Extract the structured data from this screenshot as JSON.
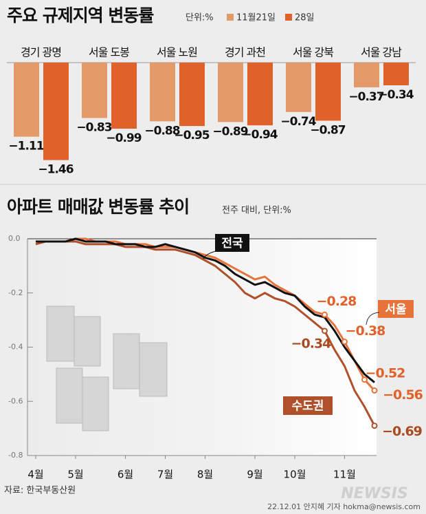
{
  "chart_data": [
    {
      "type": "bar",
      "title": "주요 규제지역 변동률",
      "unit": "단위:%",
      "categories": [
        "경기 광명",
        "서울 도봉",
        "서울 노원",
        "경기 과천",
        "서울 강북",
        "서울 강남"
      ],
      "series": [
        {
          "name": "11월21일",
          "color": "#e39a68",
          "values": [
            -1.11,
            -0.83,
            -0.88,
            -0.89,
            -0.74,
            -0.37
          ],
          "value_labels": [
            "−1.11",
            "−0.83",
            "−0.88",
            "−0.89",
            "−0.74",
            "−0.37"
          ]
        },
        {
          "name": "28일",
          "color": "#e0622a",
          "values": [
            -1.46,
            -0.99,
            -0.95,
            -0.94,
            -0.87,
            -0.34
          ],
          "value_labels": [
            "−1.46",
            "−0.99",
            "−0.95",
            "−0.94",
            "−0.87",
            "−0.34"
          ]
        }
      ]
    },
    {
      "type": "line",
      "title": "아파트 매매값 변동률 추이",
      "subtitle": "전주 대비, 단위:%",
      "categories": [
        "4월",
        null,
        null,
        null,
        "5월",
        null,
        null,
        null,
        null,
        "6월",
        null,
        null,
        null,
        "7월",
        null,
        null,
        null,
        "8월",
        null,
        null,
        null,
        null,
        "9월",
        null,
        null,
        null,
        "10월",
        null,
        null,
        null,
        null,
        "11월",
        null,
        null,
        null
      ],
      "ylim": [
        -0.8,
        0.0
      ],
      "yticks": [
        {
          "value": 0,
          "label": "0.0"
        },
        -0.2,
        -0.4,
        -0.6,
        -0.8
      ],
      "grid": false,
      "series": [
        {
          "name": "전국",
          "color": "#111111",
          "values": [
            -0.01,
            -0.01,
            -0.01,
            -0.01,
            0.0,
            -0.01,
            -0.01,
            -0.01,
            -0.02,
            -0.02,
            -0.02,
            -0.03,
            -0.03,
            -0.02,
            -0.03,
            -0.04,
            -0.05,
            -0.07,
            -0.08,
            -0.1,
            -0.13,
            -0.15,
            -0.17,
            -0.16,
            -0.18,
            -0.2,
            -0.21,
            -0.25,
            -0.28,
            -0.29,
            -0.34,
            -0.4,
            -0.45,
            -0.5,
            -0.53
          ]
        },
        {
          "name": "서울",
          "color": "#e8733a",
          "values": [
            -0.01,
            -0.01,
            -0.01,
            -0.01,
            0.0,
            0.0,
            -0.01,
            -0.01,
            -0.01,
            -0.02,
            -0.02,
            -0.02,
            -0.03,
            -0.03,
            -0.03,
            -0.04,
            -0.05,
            -0.06,
            -0.07,
            -0.09,
            -0.11,
            -0.13,
            -0.15,
            -0.14,
            -0.17,
            -0.19,
            -0.21,
            -0.24,
            -0.27,
            -0.28,
            -0.32,
            -0.38,
            -0.45,
            -0.52,
            -0.56
          ],
          "value_labels": [
            null,
            null,
            null,
            null,
            null,
            null,
            null,
            null,
            null,
            null,
            null,
            null,
            null,
            null,
            null,
            null,
            null,
            null,
            null,
            null,
            null,
            null,
            null,
            null,
            null,
            null,
            null,
            null,
            null,
            "−0.28",
            null,
            "−0.38",
            null,
            "−0.52",
            "−0.56"
          ]
        },
        {
          "name": "수도권",
          "color": "#b0502a",
          "values": [
            -0.02,
            -0.01,
            -0.01,
            -0.01,
            -0.01,
            -0.02,
            -0.02,
            -0.02,
            -0.02,
            -0.03,
            -0.03,
            -0.03,
            -0.04,
            -0.04,
            -0.04,
            -0.05,
            -0.06,
            -0.08,
            -0.1,
            -0.13,
            -0.16,
            -0.2,
            -0.22,
            -0.2,
            -0.22,
            -0.23,
            -0.25,
            -0.28,
            -0.31,
            -0.34,
            -0.41,
            -0.47,
            -0.56,
            -0.62,
            -0.69
          ],
          "value_labels": [
            null,
            null,
            null,
            null,
            null,
            null,
            null,
            null,
            null,
            null,
            null,
            null,
            null,
            null,
            null,
            null,
            null,
            null,
            null,
            null,
            null,
            null,
            null,
            null,
            null,
            null,
            null,
            null,
            null,
            "−0.34",
            null,
            null,
            null,
            null,
            "−0.69"
          ]
        }
      ]
    }
  ],
  "source": "자료: 한국부동산원",
  "credit": "22.12.01 안지혜 기자 hokma@newsis.com",
  "watermark": "NEWSIS"
}
